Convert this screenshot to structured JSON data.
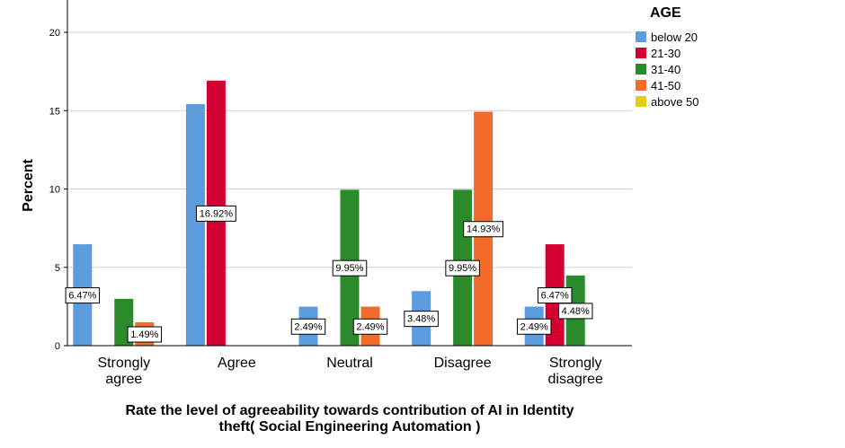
{
  "chart_data": {
    "type": "bar",
    "title": "",
    "xlabel": "Rate the level of agreeability towards contribution of AI in Identity theft( Social Engineering Automation )",
    "ylabel": "Percent",
    "ylim": [
      0,
      22
    ],
    "yticks": [
      0,
      5,
      10,
      15,
      20
    ],
    "grid": true,
    "legend_title": "AGE",
    "legend_position": "top-right",
    "categories": [
      "Strongly agree",
      "Agree",
      "Neutral",
      "Disagree",
      "Strongly disagree"
    ],
    "series": [
      {
        "name": "below 20",
        "color": "#5b9bde",
        "values": [
          6.47,
          15.42,
          2.49,
          3.48,
          2.49
        ]
      },
      {
        "name": "21-30",
        "color": "#d50032",
        "values": [
          0,
          16.92,
          0,
          0,
          6.47
        ]
      },
      {
        "name": "31-40",
        "color": "#2b8a2b",
        "values": [
          2.99,
          0,
          9.95,
          9.95,
          4.48
        ]
      },
      {
        "name": "41-50",
        "color": "#f26b2a",
        "values": [
          1.49,
          0,
          2.49,
          14.93,
          0
        ]
      },
      {
        "name": "above 50",
        "color": "#e0d010",
        "values": [
          0,
          0,
          0,
          0,
          0
        ]
      }
    ],
    "data_labels": [
      {
        "category": 0,
        "series": 0,
        "text": "6.47%"
      },
      {
        "category": 0,
        "series": 3,
        "text": "1.49%"
      },
      {
        "category": 1,
        "series": 1,
        "text": "16.92%"
      },
      {
        "category": 2,
        "series": 0,
        "text": "2.49%"
      },
      {
        "category": 2,
        "series": 2,
        "text": "9.95%"
      },
      {
        "category": 2,
        "series": 3,
        "text": "2.49%"
      },
      {
        "category": 3,
        "series": 0,
        "text": "3.48%"
      },
      {
        "category": 3,
        "series": 2,
        "text": "9.95%"
      },
      {
        "category": 3,
        "series": 3,
        "text": "14.93%"
      },
      {
        "category": 4,
        "series": 0,
        "text": "2.49%"
      },
      {
        "category": 4,
        "series": 1,
        "text": "6.47%"
      },
      {
        "category": 4,
        "series": 2,
        "text": "4.48%"
      }
    ]
  }
}
